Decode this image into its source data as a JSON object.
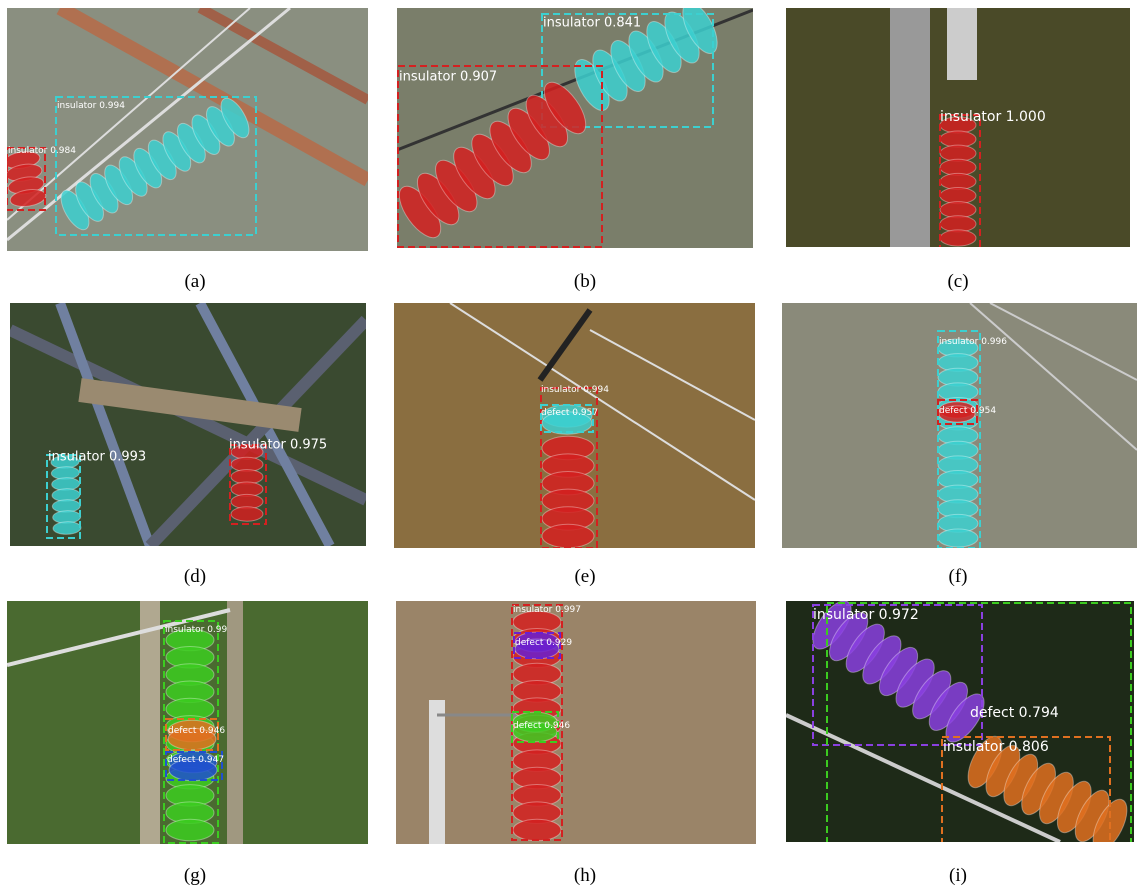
{
  "panels": [
    {
      "caption": "(a)",
      "detections": [
        {
          "label": "insulator 0.994",
          "color": "#3cd0d0"
        },
        {
          "label": "insulator 0.984",
          "color": "#d42020"
        }
      ]
    },
    {
      "caption": "(b)",
      "detections": [
        {
          "label": "insulator 0.841",
          "color": "#3cd0d0"
        },
        {
          "label": "insulator 0.907",
          "color": "#d42020"
        }
      ]
    },
    {
      "caption": "(c)",
      "detections": [
        {
          "label": "insulator 1.000",
          "color": "#d42020"
        }
      ]
    },
    {
      "caption": "(d)",
      "detections": [
        {
          "label": "insulator 0.993",
          "color": "#3cd0d0"
        },
        {
          "label": "insulator 0.975",
          "color": "#d42020"
        }
      ]
    },
    {
      "caption": "(e)",
      "detections": [
        {
          "label": "insulator 0.994",
          "color": "#d42020"
        },
        {
          "label": "defect 0.957",
          "color": "#3cd0d0"
        }
      ]
    },
    {
      "caption": "(f)",
      "detections": [
        {
          "label": "insulator 0.996",
          "color": "#3cd0d0"
        },
        {
          "label": "defect 0.954",
          "color": "#d42020"
        }
      ]
    },
    {
      "caption": "(g)",
      "detections": [
        {
          "label": "insulator 0.99",
          "color": "#3ccc20"
        },
        {
          "label": "defect 0.946",
          "color": "#e07020"
        },
        {
          "label": "defect 0.947",
          "color": "#2050d0"
        }
      ]
    },
    {
      "caption": "(h)",
      "detections": [
        {
          "label": "insulator 0.997",
          "color": "#d42020"
        },
        {
          "label": "defect 0.929",
          "color": "#6a20d0"
        },
        {
          "label": "defect 0.946",
          "color": "#3ccc20"
        }
      ]
    },
    {
      "caption": "(i)",
      "detections": [
        {
          "label": "insulator 0.972",
          "color": "#8a40e0"
        },
        {
          "label": "defect 0.794",
          "color": "#3ccc20"
        },
        {
          "label": "insulator 0.806",
          "color": "#e07020"
        }
      ]
    }
  ]
}
